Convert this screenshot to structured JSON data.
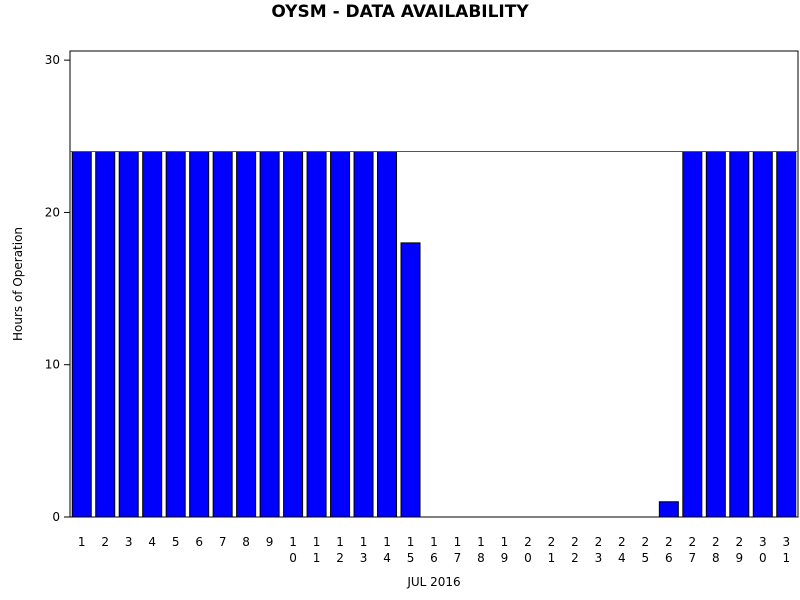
{
  "chart_data": {
    "type": "bar",
    "title": "OYSM - DATA AVAILABILITY",
    "x_label": "JUL 2016",
    "y_label": "Hours of Operation",
    "categories": [
      "1",
      "2",
      "3",
      "4",
      "5",
      "6",
      "7",
      "8",
      "9",
      "10",
      "11",
      "12",
      "13",
      "14",
      "15",
      "16",
      "17",
      "18",
      "19",
      "20",
      "21",
      "22",
      "23",
      "24",
      "25",
      "26",
      "27",
      "28",
      "29",
      "30",
      "31"
    ],
    "values": [
      24,
      24,
      24,
      24,
      24,
      24,
      24,
      24,
      24,
      24,
      24,
      24,
      24,
      24,
      18,
      0,
      0,
      0,
      0,
      0,
      0,
      0,
      0,
      0,
      0,
      1,
      24,
      24,
      24,
      24,
      24
    ],
    "color": "#0000ff",
    "reference_line": 24,
    "ylim": [
      0,
      30.6
    ],
    "yticks": [
      0,
      10,
      20,
      30
    ]
  }
}
